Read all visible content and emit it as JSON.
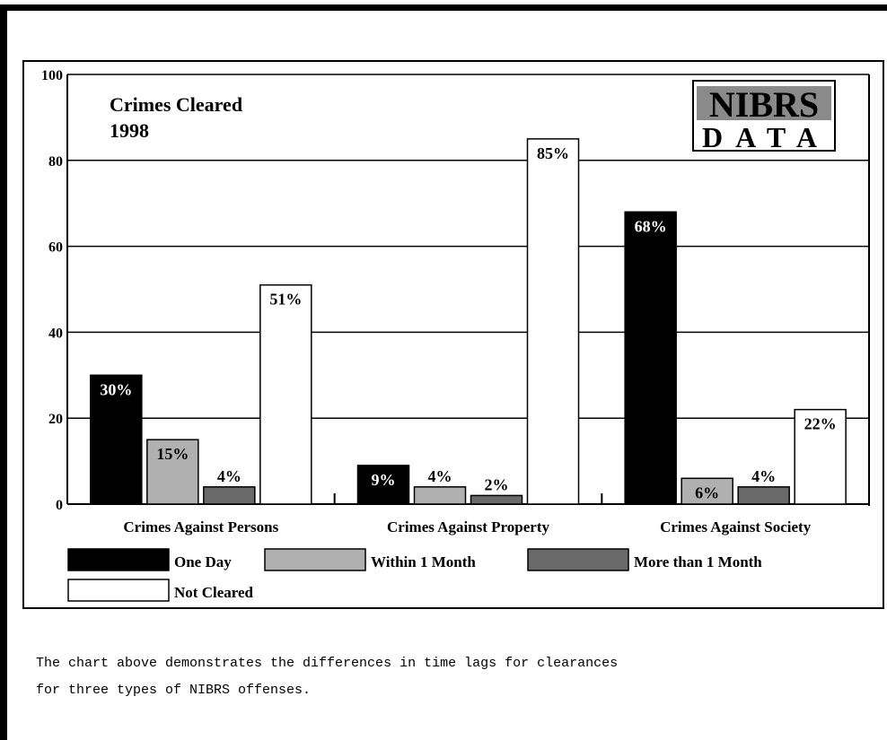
{
  "chart_data": {
    "type": "bar",
    "title": "Crimes Cleared",
    "subtitle": "1998",
    "logo": [
      "NIBRS",
      "DATA"
    ],
    "categories": [
      "Crimes Against Persons",
      "Crimes Against Property",
      "Crimes Against Society"
    ],
    "series": [
      {
        "name": "One Day",
        "color": "#000000",
        "values": [
          30,
          9,
          68
        ],
        "value_labels": [
          "30%",
          "9%",
          "68%"
        ]
      },
      {
        "name": "Within 1 Month",
        "color": "#b0b0b0",
        "values": [
          15,
          4,
          6
        ],
        "value_labels": [
          "15%",
          "4%",
          "6%"
        ]
      },
      {
        "name": "More than 1 Month",
        "color": "#6a6a6a",
        "values": [
          4,
          2,
          4
        ],
        "value_labels": [
          "4%",
          "2%",
          "4%"
        ]
      },
      {
        "name": "Not Cleared",
        "color": "#ffffff",
        "values": [
          51,
          85,
          22
        ],
        "value_labels": [
          "51%",
          "85%",
          "22%"
        ]
      }
    ],
    "ylim": [
      0,
      100
    ],
    "yticks": [
      0,
      20,
      40,
      60,
      80,
      100
    ],
    "grid": true
  },
  "caption": [
    "The chart above demonstrates the differences in time lags for clearances",
    "for three types of NIBRS offenses."
  ]
}
